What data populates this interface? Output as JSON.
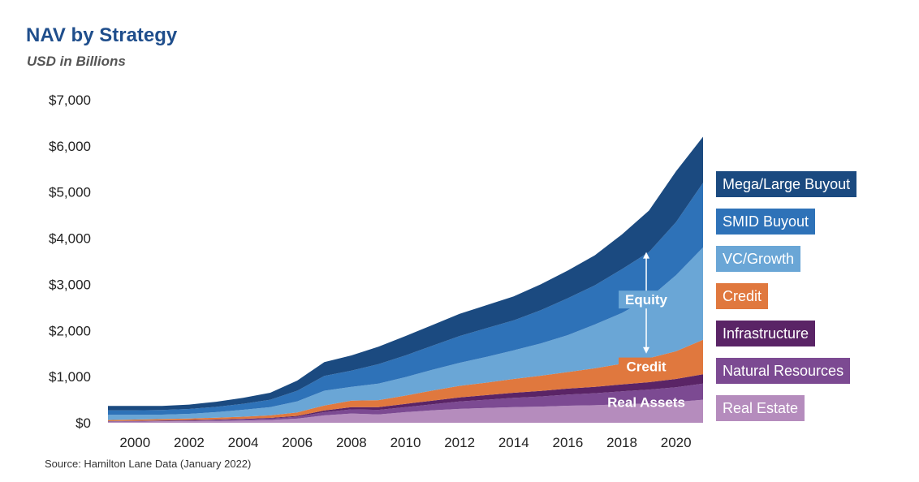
{
  "title": "NAV by Strategy",
  "subtitle": "USD in Billions",
  "source": "Source: Hamilton Lane Data (January 2022)",
  "chart_data": {
    "type": "area",
    "stacked": true,
    "x": [
      1999,
      2000,
      2001,
      2002,
      2003,
      2004,
      2005,
      2006,
      2007,
      2008,
      2009,
      2010,
      2011,
      2012,
      2013,
      2014,
      2015,
      2016,
      2017,
      2018,
      2019,
      2020,
      2021
    ],
    "ylim": [
      0,
      7000
    ],
    "yticks": [
      "$0",
      "$1,000",
      "$2,000",
      "$3,000",
      "$4,000",
      "$5,000",
      "$6,000",
      "$7,000"
    ],
    "xticks": [
      "2000",
      "2002",
      "2004",
      "2006",
      "2008",
      "2010",
      "2012",
      "2014",
      "2016",
      "2018",
      "2020"
    ],
    "series": [
      {
        "name": "Real Estate",
        "color": "#b58cbd",
        "values": [
          20,
          25,
          30,
          35,
          40,
          50,
          60,
          90,
          160,
          200,
          180,
          230,
          270,
          300,
          320,
          340,
          350,
          370,
          380,
          400,
          420,
          450,
          500
        ]
      },
      {
        "name": "Natural Resources",
        "color": "#7c4a92",
        "values": [
          10,
          12,
          14,
          16,
          20,
          25,
          30,
          40,
          70,
          90,
          100,
          110,
          130,
          160,
          180,
          200,
          220,
          240,
          260,
          280,
          300,
          320,
          350
        ]
      },
      {
        "name": "Infrastructure",
        "color": "#5a2466",
        "values": [
          5,
          6,
          7,
          8,
          10,
          12,
          15,
          20,
          35,
          50,
          60,
          70,
          80,
          90,
          100,
          110,
          120,
          130,
          140,
          150,
          160,
          180,
          200
        ]
      },
      {
        "name": "Credit",
        "color": "#e0783e",
        "values": [
          25,
          28,
          30,
          35,
          40,
          45,
          55,
          75,
          110,
          140,
          150,
          180,
          220,
          250,
          270,
          300,
          330,
          360,
          400,
          450,
          520,
          600,
          750
        ]
      },
      {
        "name": "VC/Growth",
        "color": "#6aa6d6",
        "values": [
          110,
          100,
          95,
          100,
          120,
          150,
          180,
          240,
          320,
          300,
          360,
          400,
          450,
          500,
          560,
          620,
          700,
          800,
          950,
          1100,
          1300,
          1650,
          2000
        ]
      },
      {
        "name": "SMID Buyout",
        "color": "#2e72b8",
        "values": [
          100,
          100,
          100,
          105,
          115,
          130,
          160,
          230,
          320,
          350,
          420,
          470,
          520,
          580,
          620,
          650,
          720,
          800,
          850,
          950,
          1000,
          1150,
          1400
        ]
      },
      {
        "name": "Mega/Large Buyout",
        "color": "#1b4a80",
        "values": [
          95,
          95,
          90,
          95,
          110,
          130,
          150,
          220,
          300,
          330,
          380,
          420,
          450,
          480,
          500,
          520,
          560,
          600,
          650,
          750,
          900,
          1100,
          1000
        ]
      }
    ],
    "annotations": [
      "Equity",
      "Credit",
      "Real Assets"
    ],
    "legend_position": "right"
  }
}
